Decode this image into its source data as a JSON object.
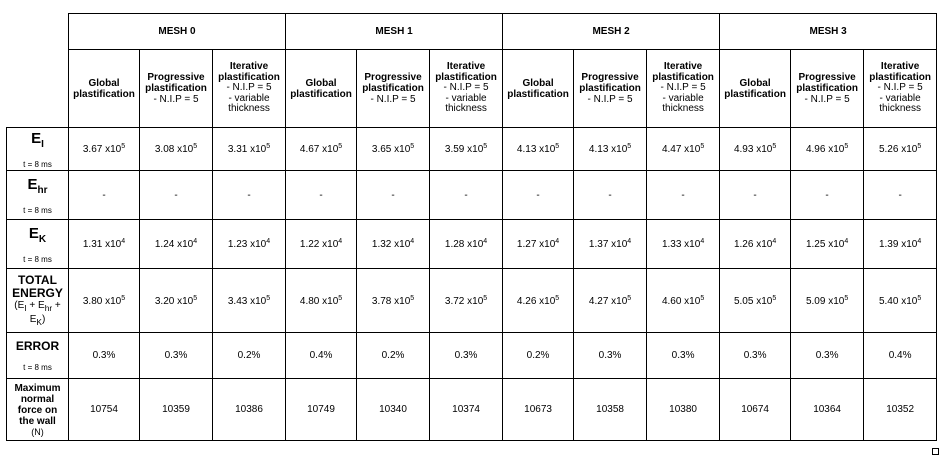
{
  "meshes": [
    "MESH 0",
    "MESH 1",
    "MESH 2",
    "MESH 3"
  ],
  "methods": {
    "global": [
      "Global",
      "plastification"
    ],
    "progressive": [
      "Progressive",
      "plastification",
      "-  N.I.P = 5"
    ],
    "iterative": [
      "Iterative",
      "plastification",
      "- N.I.P = 5",
      "- variable",
      "thickness"
    ]
  },
  "rows": {
    "ei": {
      "symbol": "E",
      "sub": "I",
      "time": "t = 8 ms",
      "values": [
        {
          "m": "3.67 x10",
          "e": "5"
        },
        {
          "m": "3.08 x10",
          "e": "5"
        },
        {
          "m": "3.31 x10",
          "e": "5"
        },
        {
          "m": "4.67 x10",
          "e": "5"
        },
        {
          "m": "3.65 x10",
          "e": "5"
        },
        {
          "m": "3.59 x10",
          "e": "5"
        },
        {
          "m": "4.13 x10",
          "e": "5"
        },
        {
          "m": "4.13 x10",
          "e": "5"
        },
        {
          "m": "4.47 x10",
          "e": "5"
        },
        {
          "m": "4.93 x10",
          "e": "5"
        },
        {
          "m": "4.96 x10",
          "e": "5"
        },
        {
          "m": "5.26 x10",
          "e": "5"
        }
      ]
    },
    "ehr": {
      "symbol": "E",
      "sub": "hr",
      "time": "t = 8 ms",
      "values": [
        "-",
        "-",
        "-",
        "-",
        "-",
        "-",
        "-",
        "-",
        "-",
        "-",
        "-",
        "-"
      ]
    },
    "ek": {
      "symbol": "E",
      "sub": "K",
      "time": "t = 8 ms",
      "values": [
        {
          "m": "1.31 x10",
          "e": "4"
        },
        {
          "m": "1.24 x10",
          "e": "4"
        },
        {
          "m": "1.23 x10",
          "e": "4"
        },
        {
          "m": "1.22 x10",
          "e": "4"
        },
        {
          "m": "1.32 x10",
          "e": "4"
        },
        {
          "m": "1.28 x10",
          "e": "4"
        },
        {
          "m": "1.27 x10",
          "e": "4"
        },
        {
          "m": "1.37 x10",
          "e": "4"
        },
        {
          "m": "1.33 x10",
          "e": "4"
        },
        {
          "m": "1.26 x10",
          "e": "4"
        },
        {
          "m": "1.25 x10",
          "e": "4"
        },
        {
          "m": "1.39 x10",
          "e": "4"
        }
      ]
    },
    "total": {
      "label1": "TOTAL",
      "label2": "ENERGY",
      "formula1": "(E",
      "formula1_sub1": "I",
      "formula1_mid": " + E",
      "formula1_sub2": "hr",
      "formula1_end": " +",
      "formula2": "E",
      "formula2_sub": "K",
      "formula2_end": ")",
      "values": [
        {
          "m": "3.80 x10",
          "e": "5"
        },
        {
          "m": "3.20 x10",
          "e": "5"
        },
        {
          "m": "3.43 x10",
          "e": "5"
        },
        {
          "m": "4.80 x10",
          "e": "5"
        },
        {
          "m": "3.78 x10",
          "e": "5"
        },
        {
          "m": "3.72 x10",
          "e": "5"
        },
        {
          "m": "4.26 x10",
          "e": "5"
        },
        {
          "m": "4.27 x10",
          "e": "5"
        },
        {
          "m": "4.60 x10",
          "e": "5"
        },
        {
          "m": "5.05 x10",
          "e": "5"
        },
        {
          "m": "5.09 x10",
          "e": "5"
        },
        {
          "m": "5.40 x10",
          "e": "5"
        }
      ]
    },
    "error": {
      "label": "ERROR",
      "time": "t = 8 ms",
      "values": [
        "0.3%",
        "0.3%",
        "0.2%",
        "0.4%",
        "0.2%",
        "0.3%",
        "0.2%",
        "0.3%",
        "0.3%",
        "0.3%",
        "0.3%",
        "0.4%"
      ]
    },
    "maxforce": {
      "label": [
        "Maximum",
        "normal",
        "force on",
        "the wall"
      ],
      "unit": "(N)",
      "values": [
        "10754",
        "10359",
        "10386",
        "10749",
        "10340",
        "10374",
        "10673",
        "10358",
        "10380",
        "10674",
        "10364",
        "10352"
      ]
    }
  }
}
